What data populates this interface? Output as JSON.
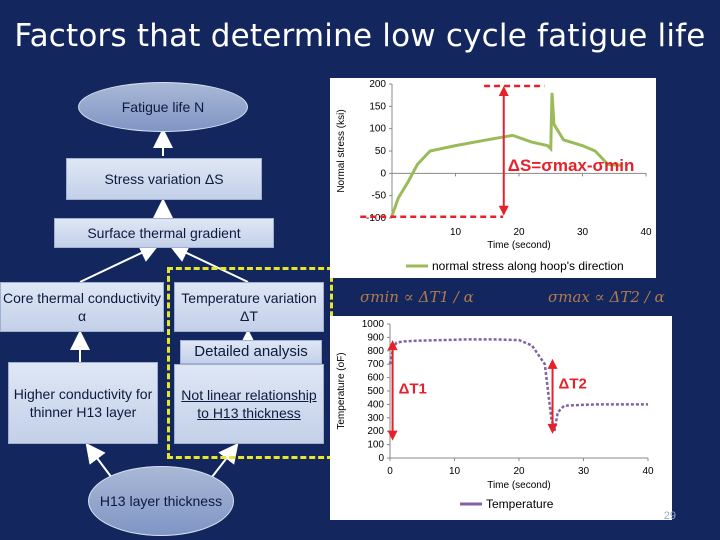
{
  "title": "Factors that determine low cycle fatigue life",
  "nodes": {
    "fatigue_life": "Fatigue life N",
    "stress_variation": "Stress variation ΔS",
    "surface_thermal_gradient": "Surface thermal gradient",
    "core_thermal_conductivity": "Core thermal conductivity α",
    "temperature_variation": "Temperature variation ΔT",
    "detailed_analysis": "Detailed analysis",
    "higher_conductivity": "Higher conductivity for thinner H13 layer",
    "not_linear": "Not linear relationship to H13 thickness",
    "h13_thickness": "H13 layer thickness"
  },
  "formulas": {
    "left": "σmin ∝ ΔT1 / α",
    "right": "σmax ∝ ΔT2 / α"
  },
  "page_number": "29",
  "chart_data": [
    {
      "type": "line",
      "title": "",
      "xlabel": "Time (second)",
      "ylabel": "Normal stress (ksi)",
      "xlim": [
        0,
        40
      ],
      "ylim": [
        -100,
        200
      ],
      "xticks": [
        "10",
        "20",
        "30",
        "40"
      ],
      "yticks": [
        "200",
        "150",
        "100",
        "50",
        "0",
        "-50",
        "-100"
      ],
      "legend": "normal stress along hoop's direction",
      "legend_position": "bottom",
      "annotation": "ΔS=σmax-σmin",
      "series": [
        {
          "name": "normal stress along hoop's direction",
          "color": "#9bbb59",
          "x": [
            0,
            1,
            2.5,
            4,
            6,
            10,
            15,
            19,
            22,
            24.5,
            25,
            25.2,
            25.5,
            27,
            30,
            32,
            34,
            36
          ],
          "y": [
            -95,
            -55,
            -20,
            20,
            50,
            62,
            75,
            85,
            70,
            62,
            55,
            180,
            110,
            75,
            62,
            50,
            20,
            18
          ]
        }
      ]
    },
    {
      "type": "line",
      "title": "",
      "xlabel": "Time (second)",
      "ylabel": "Temperature (oF)",
      "xlim": [
        0,
        40
      ],
      "ylim": [
        0,
        1000
      ],
      "xticks": [
        "0",
        "10",
        "20",
        "30",
        "40"
      ],
      "yticks": [
        "1000",
        "900",
        "800",
        "700",
        "600",
        "500",
        "400",
        "300",
        "200",
        "100",
        "0"
      ],
      "legend": "Temperature",
      "legend_position": "bottom",
      "annotations": [
        "ΔT1",
        "ΔT2"
      ],
      "series": [
        {
          "name": "Temperature",
          "color": "#8064a2",
          "x": [
            0,
            0.5,
            1,
            2,
            4,
            8,
            12,
            16,
            20,
            22,
            24,
            25,
            25.5,
            26,
            27,
            29,
            32,
            36,
            40
          ],
          "y": [
            700,
            820,
            860,
            870,
            875,
            880,
            885,
            885,
            880,
            840,
            700,
            300,
            200,
            340,
            390,
            395,
            400,
            400,
            400
          ]
        }
      ]
    }
  ],
  "colors": {
    "background": "#13275e",
    "arrow": "#ffffff",
    "dashed_highlight": "#e6e62a",
    "annotation_red": "#e6212a"
  }
}
